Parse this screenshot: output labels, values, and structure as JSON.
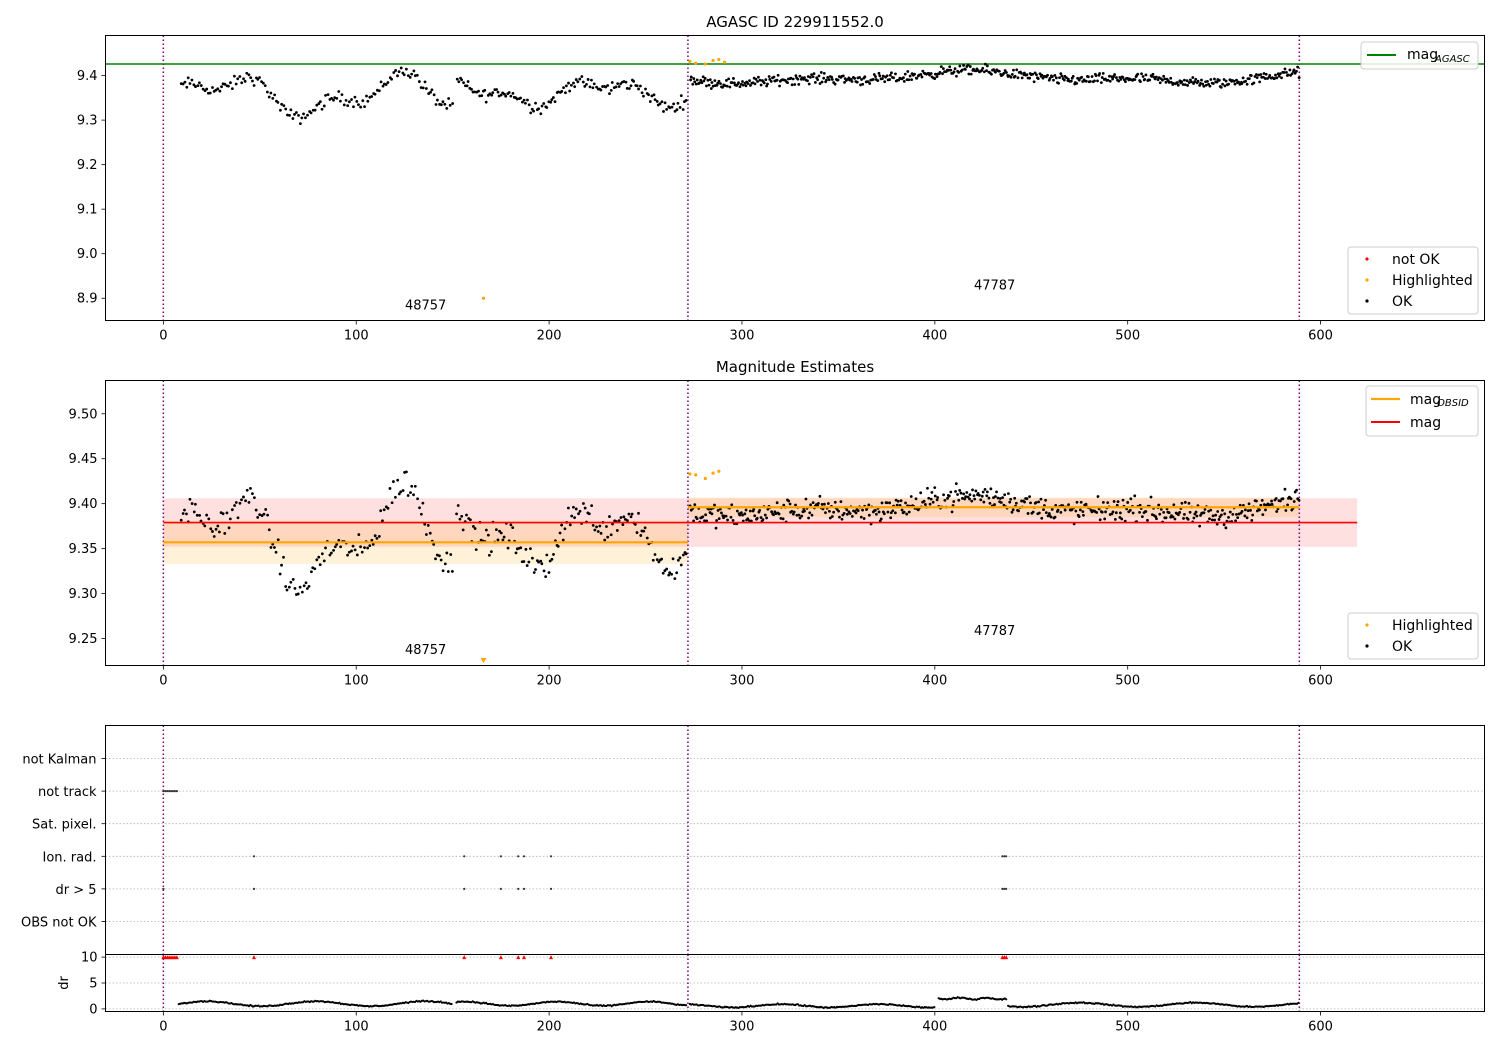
{
  "colors": {
    "agasc_line": "#008000",
    "obsid_mag": "#ffa500",
    "obsid_band": "#ffa500",
    "mag_line": "#ff0000",
    "mag_band": "#ff0000",
    "not_ok": "#ff0000",
    "highlighted": "#ffa500",
    "ok": "#000000",
    "obs_boundary": "#800080",
    "grid": "#b0b0b0"
  },
  "chart_data": [
    {
      "type": "scatter",
      "title": "AGASC ID 229911552.0",
      "xlim": [
        -30,
        685
      ],
      "ylim": [
        8.85,
        9.49
      ],
      "x_ticks": [
        0,
        100,
        200,
        300,
        400,
        500,
        600
      ],
      "y_ticks": [
        8.9,
        9.0,
        9.1,
        9.2,
        9.3,
        9.4
      ],
      "y_tick_labels": [
        "8.9",
        "9.0",
        "9.1",
        "9.2",
        "9.3",
        "9.4"
      ],
      "mag_agasc": 9.426,
      "obs_boundaries": [
        0,
        272,
        589
      ],
      "obs_labels": [
        {
          "text": "48757",
          "x": 136,
          "y": 8.875
        },
        {
          "text": "47787",
          "x": 431,
          "y": 8.92
        }
      ],
      "line_legend": [
        "mag",
        "AGASC"
      ],
      "point_legend": [
        "not OK",
        "Highlighted",
        "OK"
      ],
      "segments": [
        {
          "x0": 9,
          "x1": 150,
          "level": 9.355,
          "amp": 0.035,
          "noise": 0.012,
          "step": 0.95
        },
        {
          "x0": 152,
          "x1": 271,
          "level": 9.362,
          "amp": 0.022,
          "noise": 0.012,
          "step": 0.85
        },
        {
          "x0": 273,
          "x1": 589,
          "level": 9.396,
          "amp": 0.01,
          "noise": 0.01,
          "step": 0.6
        }
      ],
      "highlighted_points": [
        [
          166,
          8.9
        ],
        [
          273,
          9.432
        ],
        [
          276,
          9.428
        ],
        [
          281,
          9.426
        ],
        [
          285,
          9.434
        ],
        [
          288,
          9.436
        ],
        [
          291,
          9.43
        ]
      ]
    },
    {
      "type": "scatter",
      "title": "Magnitude Estimates",
      "xlim": [
        -30,
        685
      ],
      "ylim": [
        9.22,
        9.537
      ],
      "x_ticks": [
        0,
        100,
        200,
        300,
        400,
        500,
        600
      ],
      "y_ticks": [
        9.25,
        9.3,
        9.35,
        9.4,
        9.45,
        9.5
      ],
      "y_tick_labels": [
        "9.25",
        "9.30",
        "9.35",
        "9.40",
        "9.45",
        "9.50"
      ],
      "mag": 9.379,
      "mag_band": [
        9.352,
        9.406
      ],
      "mag_range": [
        0,
        619
      ],
      "obsid_mags": [
        {
          "x0": 0,
          "x1": 272,
          "mag": 9.357,
          "band": [
            9.333,
            9.381
          ]
        },
        {
          "x0": 272,
          "x1": 589,
          "mag": 9.396,
          "band": [
            9.385,
            9.407
          ]
        }
      ],
      "obs_boundaries": [
        0,
        272,
        589
      ],
      "obs_labels": [
        {
          "text": "48757",
          "x": 136,
          "y": 9.233
        },
        {
          "text": "47787",
          "x": 431,
          "y": 9.254
        }
      ],
      "line_legend": [
        {
          "name": "mag",
          "sub": "OBSID"
        },
        {
          "name": "mag",
          "sub": ""
        }
      ],
      "point_legend": [
        "Highlighted",
        "OK"
      ],
      "segments": [
        {
          "x0": 9,
          "x1": 150,
          "level": 9.36,
          "amp": 0.04,
          "noise": 0.014,
          "step": 0.95
        },
        {
          "x0": 152,
          "x1": 271,
          "level": 9.365,
          "amp": 0.025,
          "noise": 0.014,
          "step": 0.85
        },
        {
          "x0": 273,
          "x1": 589,
          "level": 9.396,
          "amp": 0.008,
          "noise": 0.011,
          "step": 0.6
        }
      ],
      "highlighted_points": [
        [
          273,
          9.433
        ],
        [
          276,
          9.432
        ],
        [
          281,
          9.428
        ],
        [
          285,
          9.434
        ],
        [
          288,
          9.436
        ]
      ],
      "below_range_marker": {
        "x": 166,
        "y": 9.225
      }
    },
    {
      "type": "scatter",
      "title": "",
      "xlim": [
        -30,
        685
      ],
      "flag_rows": [
        "not Kalman",
        "not track",
        "Sat. pixel.",
        "Ion. rad.",
        "dr > 5",
        "OBS not OK"
      ],
      "flag_points": {
        "not track": [
          0,
          1,
          2,
          3,
          4,
          5,
          6,
          7
        ],
        "Ion. rad.": [
          47,
          156,
          175,
          184,
          187,
          201,
          435,
          436,
          437
        ],
        "dr > 5": [
          0,
          47,
          156,
          175,
          184,
          187,
          201,
          435,
          436,
          437
        ]
      },
      "obs_boundaries": [
        0,
        272,
        589
      ],
      "x_ticks": [
        0,
        100,
        200,
        300,
        400,
        500,
        600
      ]
    },
    {
      "type": "scatter",
      "title": "",
      "ylabel": "dr",
      "xlim": [
        -30,
        685
      ],
      "ylim": [
        -0.5,
        10.5
      ],
      "x_ticks": [
        0,
        100,
        200,
        300,
        400,
        500,
        600
      ],
      "y_ticks": [
        0,
        5,
        10
      ],
      "y_tick_labels": [
        "0",
        "5",
        "10"
      ],
      "capped_points": [
        0,
        1,
        2,
        3,
        4,
        5,
        6,
        7,
        47,
        156,
        175,
        184,
        187,
        201,
        435,
        436,
        437
      ],
      "dr_segments": [
        {
          "x0": 8,
          "x1": 150,
          "level": 1.0,
          "amp": 0.6
        },
        {
          "x0": 152,
          "x1": 271,
          "level": 1.0,
          "amp": 0.5
        },
        {
          "x0": 273,
          "x1": 400,
          "level": 0.6,
          "amp": 0.4
        },
        {
          "x0": 402,
          "x1": 437,
          "level": 2.0,
          "amp": 0.2
        },
        {
          "x0": 438,
          "x1": 589,
          "level": 0.8,
          "amp": 0.5
        }
      ],
      "obs_boundaries": [
        0,
        272,
        589
      ]
    }
  ]
}
